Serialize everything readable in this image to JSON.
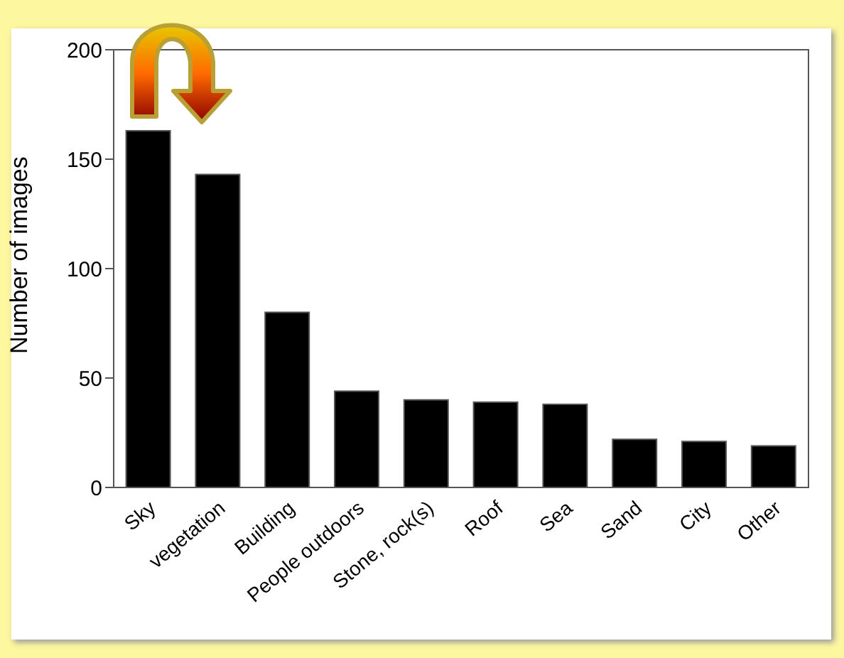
{
  "chart_data": {
    "type": "bar",
    "ylabel": "Number of images",
    "categories": [
      "Sky",
      "vegetation",
      "Building",
      "People outdoors",
      "Stone, rock(s)",
      "Roof",
      "Sea",
      "Sand",
      "City",
      "Other"
    ],
    "values": [
      163,
      143,
      80,
      44,
      40,
      39,
      38,
      22,
      21,
      19
    ],
    "color": "#000000",
    "ylim": [
      0,
      200
    ],
    "yticks": [
      0,
      50,
      100,
      150,
      200
    ],
    "grid": false,
    "legend": false
  }
}
